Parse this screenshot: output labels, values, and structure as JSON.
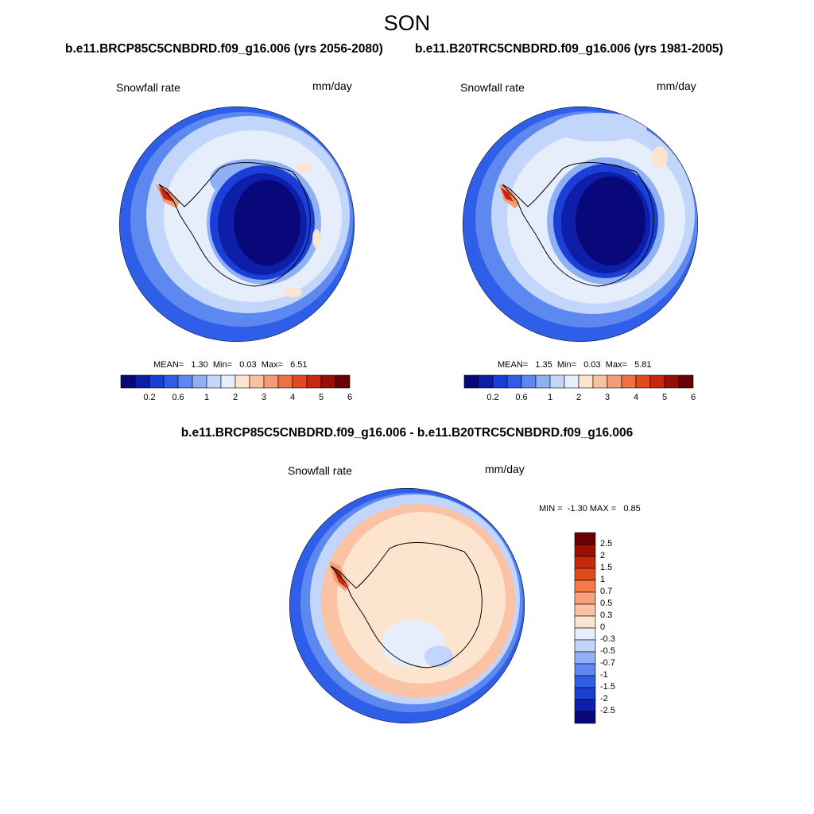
{
  "main_title": "SON",
  "panels": [
    {
      "case_title": "b.e11.BRCP85C5CNBDRD.f09_g16.006 (yrs 2056-2080)",
      "left_label": "Snowfall rate",
      "right_label": "mm/day",
      "stats": "MEAN=   1.30  Min=   0.03  Max=   6.51"
    },
    {
      "case_title": "b.e11.B20TRC5CNBDRD.f09_g16.006 (yrs 1981-2005)",
      "left_label": "Snowfall rate",
      "right_label": "mm/day",
      "stats": "MEAN=   1.35  Min=   0.03  Max=   5.81"
    }
  ],
  "diff_panel": {
    "title": "b.e11.BRCP85C5CNBDRD.f09_g16.006 - b.e11.B20TRC5CNBDRD.f09_g16.006",
    "left_label": "Snowfall rate",
    "right_label": "mm/day",
    "stats": "MIN =  -1.30 MAX =   0.85"
  },
  "colors": {
    "abs_scale": [
      "#08087a",
      "#0d1fa8",
      "#1a3fd6",
      "#2f5ee8",
      "#5c88f0",
      "#8fb0f5",
      "#c2d6fb",
      "#e6eefc",
      "#fde4cf",
      "#f9c1a0",
      "#f59a73",
      "#ef7043",
      "#e24a1e",
      "#c8280d",
      "#991002",
      "#6b0000"
    ],
    "diff_scale": [
      "#6b0000",
      "#991002",
      "#c8280d",
      "#e24a1e",
      "#f57848",
      "#f9a07a",
      "#fbc2a4",
      "#fde4cf",
      "#e6eefc",
      "#c2d6fb",
      "#8fb0f5",
      "#5c88f0",
      "#2f5ee8",
      "#1a3fd6",
      "#0d1fa8",
      "#08087a"
    ]
  },
  "chart_data": [
    {
      "type": "heatmap",
      "title": "b.e11.BRCP85C5CNBDRD.f09_g16.006 (yrs 2056-2080)",
      "variable": "Snowfall rate",
      "units": "mm/day",
      "mean": 1.3,
      "min": 0.03,
      "max": 6.51,
      "colorbar_ticks": [
        "0.2",
        "0.6",
        "1",
        "2",
        "3",
        "4",
        "5",
        "6"
      ],
      "projection": "south polar stereographic"
    },
    {
      "type": "heatmap",
      "title": "b.e11.B20TRC5CNBDRD.f09_g16.006 (yrs 1981-2005)",
      "variable": "Snowfall rate",
      "units": "mm/day",
      "mean": 1.35,
      "min": 0.03,
      "max": 5.81,
      "colorbar_ticks": [
        "0.2",
        "0.6",
        "1",
        "2",
        "3",
        "4",
        "5",
        "6"
      ],
      "projection": "south polar stereographic"
    },
    {
      "type": "heatmap",
      "title": "b.e11.BRCP85C5CNBDRD.f09_g16.006 - b.e11.B20TRC5CNBDRD.f09_g16.006",
      "variable": "Snowfall rate",
      "units": "mm/day",
      "min": -1.3,
      "max": 0.85,
      "colorbar_ticks": [
        "2.5",
        "2",
        "1.5",
        "1",
        "0.7",
        "0.5",
        "0.3",
        "0",
        "-0.3",
        "-0.5",
        "-0.7",
        "-1",
        "-1.5",
        "-2",
        "-2.5"
      ],
      "projection": "south polar stereographic"
    }
  ]
}
